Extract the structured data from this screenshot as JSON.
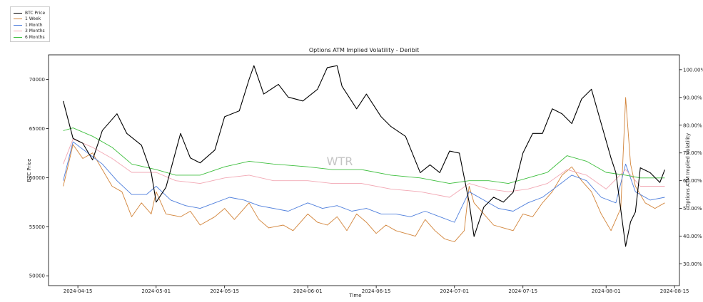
{
  "chart_data": {
    "type": "line",
    "title": "Options ATM Implied Volatility - Deribit",
    "xlabel": "Time",
    "ylabel_left": "BTC Price",
    "ylabel_right": "Options ATM Implied Volatility",
    "watermark": "WTR",
    "x_domain": [
      "2024-04-09",
      "2024-08-16"
    ],
    "x_ticks": [
      "2024-04-15",
      "2024-05-01",
      "2024-05-15",
      "2024-06-01",
      "2024-06-15",
      "2024-07-01",
      "2024-07-15",
      "2024-08-01",
      "2024-08-15"
    ],
    "y_left_domain": [
      49000,
      72500
    ],
    "y_left_ticks": [
      "50000",
      "55000",
      "60000",
      "65000",
      "70000"
    ],
    "y_right_domain": [
      0.2218,
      1.0535
    ],
    "y_right_ticks": [
      "30.00%",
      "40.00%",
      "50.00%",
      "60.00%",
      "70.00%",
      "80.00%",
      "90.00%",
      "100.00%"
    ],
    "legend_position": "top-left (outside plot)",
    "series": [
      {
        "name": "BTC Price",
        "axis": "left",
        "color": "#000000",
        "points": [
          [
            "2024-04-12",
            67800
          ],
          [
            "2024-04-14",
            64000
          ],
          [
            "2024-04-16",
            63500
          ],
          [
            "2024-04-18",
            61800
          ],
          [
            "2024-04-20",
            64800
          ],
          [
            "2024-04-23",
            66500
          ],
          [
            "2024-04-25",
            64500
          ],
          [
            "2024-04-28",
            63300
          ],
          [
            "2024-04-30",
            60500
          ],
          [
            "2024-05-01",
            57500
          ],
          [
            "2024-05-03",
            59000
          ],
          [
            "2024-05-06",
            64500
          ],
          [
            "2024-05-08",
            62000
          ],
          [
            "2024-05-10",
            61500
          ],
          [
            "2024-05-13",
            62800
          ],
          [
            "2024-05-15",
            66200
          ],
          [
            "2024-05-18",
            66800
          ],
          [
            "2024-05-20",
            70000
          ],
          [
            "2024-05-21",
            71400
          ],
          [
            "2024-05-23",
            68500
          ],
          [
            "2024-05-26",
            69500
          ],
          [
            "2024-05-28",
            68200
          ],
          [
            "2024-05-31",
            67800
          ],
          [
            "2024-06-03",
            69000
          ],
          [
            "2024-06-05",
            71200
          ],
          [
            "2024-06-07",
            71400
          ],
          [
            "2024-06-08",
            69300
          ],
          [
            "2024-06-11",
            67000
          ],
          [
            "2024-06-13",
            68500
          ],
          [
            "2024-06-16",
            66200
          ],
          [
            "2024-06-18",
            65200
          ],
          [
            "2024-06-21",
            64200
          ],
          [
            "2024-06-24",
            60500
          ],
          [
            "2024-06-26",
            61300
          ],
          [
            "2024-06-28",
            60500
          ],
          [
            "2024-06-30",
            62700
          ],
          [
            "2024-07-02",
            62500
          ],
          [
            "2024-07-04",
            57500
          ],
          [
            "2024-07-05",
            54000
          ],
          [
            "2024-07-07",
            57000
          ],
          [
            "2024-07-09",
            58000
          ],
          [
            "2024-07-11",
            57500
          ],
          [
            "2024-07-13",
            58500
          ],
          [
            "2024-07-15",
            62500
          ],
          [
            "2024-07-17",
            64500
          ],
          [
            "2024-07-19",
            64500
          ],
          [
            "2024-07-21",
            67000
          ],
          [
            "2024-07-23",
            66500
          ],
          [
            "2024-07-25",
            65500
          ],
          [
            "2024-07-27",
            68000
          ],
          [
            "2024-07-29",
            69000
          ],
          [
            "2024-07-31",
            65500
          ],
          [
            "2024-08-02",
            62000
          ],
          [
            "2024-08-03",
            60500
          ],
          [
            "2024-08-05",
            53000
          ],
          [
            "2024-08-06",
            55500
          ],
          [
            "2024-08-07",
            56500
          ],
          [
            "2024-08-08",
            61000
          ],
          [
            "2024-08-10",
            60500
          ],
          [
            "2024-08-12",
            59500
          ],
          [
            "2024-08-13",
            60800
          ]
        ]
      },
      {
        "name": "1 Week",
        "axis": "right",
        "color": "#d2843a",
        "points": [
          [
            "2024-04-12",
            0.58
          ],
          [
            "2024-04-14",
            0.73
          ],
          [
            "2024-04-16",
            0.68
          ],
          [
            "2024-04-18",
            0.7
          ],
          [
            "2024-04-20",
            0.64
          ],
          [
            "2024-04-22",
            0.58
          ],
          [
            "2024-04-24",
            0.56
          ],
          [
            "2024-04-26",
            0.47
          ],
          [
            "2024-04-28",
            0.52
          ],
          [
            "2024-04-30",
            0.48
          ],
          [
            "2024-05-01",
            0.56
          ],
          [
            "2024-05-03",
            0.48
          ],
          [
            "2024-05-06",
            0.47
          ],
          [
            "2024-05-08",
            0.49
          ],
          [
            "2024-05-10",
            0.44
          ],
          [
            "2024-05-13",
            0.47
          ],
          [
            "2024-05-15",
            0.5
          ],
          [
            "2024-05-17",
            0.46
          ],
          [
            "2024-05-20",
            0.52
          ],
          [
            "2024-05-22",
            0.46
          ],
          [
            "2024-05-24",
            0.43
          ],
          [
            "2024-05-27",
            0.44
          ],
          [
            "2024-05-29",
            0.42
          ],
          [
            "2024-06-01",
            0.48
          ],
          [
            "2024-06-03",
            0.45
          ],
          [
            "2024-06-05",
            0.44
          ],
          [
            "2024-06-07",
            0.47
          ],
          [
            "2024-06-09",
            0.42
          ],
          [
            "2024-06-11",
            0.48
          ],
          [
            "2024-06-13",
            0.45
          ],
          [
            "2024-06-15",
            0.41
          ],
          [
            "2024-06-17",
            0.44
          ],
          [
            "2024-06-19",
            0.42
          ],
          [
            "2024-06-21",
            0.41
          ],
          [
            "2024-06-23",
            0.4
          ],
          [
            "2024-06-25",
            0.46
          ],
          [
            "2024-06-27",
            0.42
          ],
          [
            "2024-06-29",
            0.39
          ],
          [
            "2024-07-01",
            0.38
          ],
          [
            "2024-07-03",
            0.42
          ],
          [
            "2024-07-04",
            0.58
          ],
          [
            "2024-07-05",
            0.52
          ],
          [
            "2024-07-07",
            0.48
          ],
          [
            "2024-07-09",
            0.44
          ],
          [
            "2024-07-11",
            0.43
          ],
          [
            "2024-07-13",
            0.42
          ],
          [
            "2024-07-15",
            0.48
          ],
          [
            "2024-07-17",
            0.47
          ],
          [
            "2024-07-19",
            0.52
          ],
          [
            "2024-07-21",
            0.56
          ],
          [
            "2024-07-23",
            0.62
          ],
          [
            "2024-07-25",
            0.65
          ],
          [
            "2024-07-27",
            0.6
          ],
          [
            "2024-07-29",
            0.56
          ],
          [
            "2024-07-31",
            0.48
          ],
          [
            "2024-08-02",
            0.42
          ],
          [
            "2024-08-04",
            0.5
          ],
          [
            "2024-08-05",
            0.9
          ],
          [
            "2024-08-06",
            0.66
          ],
          [
            "2024-08-07",
            0.58
          ],
          [
            "2024-08-09",
            0.52
          ],
          [
            "2024-08-11",
            0.5
          ],
          [
            "2024-08-13",
            0.52
          ]
        ]
      },
      {
        "name": "1 Month",
        "axis": "right",
        "color": "#4f7fdc",
        "points": [
          [
            "2024-04-12",
            0.6
          ],
          [
            "2024-04-14",
            0.74
          ],
          [
            "2024-04-17",
            0.7
          ],
          [
            "2024-04-20",
            0.66
          ],
          [
            "2024-04-23",
            0.6
          ],
          [
            "2024-04-26",
            0.55
          ],
          [
            "2024-04-29",
            0.55
          ],
          [
            "2024-05-01",
            0.58
          ],
          [
            "2024-05-04",
            0.53
          ],
          [
            "2024-05-07",
            0.51
          ],
          [
            "2024-05-10",
            0.5
          ],
          [
            "2024-05-13",
            0.52
          ],
          [
            "2024-05-16",
            0.54
          ],
          [
            "2024-05-19",
            0.53
          ],
          [
            "2024-05-22",
            0.51
          ],
          [
            "2024-05-25",
            0.5
          ],
          [
            "2024-05-28",
            0.49
          ],
          [
            "2024-06-01",
            0.52
          ],
          [
            "2024-06-04",
            0.5
          ],
          [
            "2024-06-07",
            0.51
          ],
          [
            "2024-06-10",
            0.49
          ],
          [
            "2024-06-13",
            0.5
          ],
          [
            "2024-06-16",
            0.48
          ],
          [
            "2024-06-19",
            0.48
          ],
          [
            "2024-06-22",
            0.47
          ],
          [
            "2024-06-25",
            0.49
          ],
          [
            "2024-06-28",
            0.47
          ],
          [
            "2024-07-01",
            0.45
          ],
          [
            "2024-07-04",
            0.56
          ],
          [
            "2024-07-07",
            0.53
          ],
          [
            "2024-07-10",
            0.5
          ],
          [
            "2024-07-13",
            0.49
          ],
          [
            "2024-07-16",
            0.52
          ],
          [
            "2024-07-19",
            0.54
          ],
          [
            "2024-07-22",
            0.58
          ],
          [
            "2024-07-25",
            0.62
          ],
          [
            "2024-07-28",
            0.6
          ],
          [
            "2024-07-31",
            0.54
          ],
          [
            "2024-08-03",
            0.52
          ],
          [
            "2024-08-05",
            0.66
          ],
          [
            "2024-08-07",
            0.56
          ],
          [
            "2024-08-10",
            0.53
          ],
          [
            "2024-08-13",
            0.54
          ]
        ]
      },
      {
        "name": "3 Months",
        "axis": "right",
        "color": "#f2a8b4",
        "points": [
          [
            "2024-04-12",
            0.66
          ],
          [
            "2024-04-14",
            0.75
          ],
          [
            "2024-04-18",
            0.72
          ],
          [
            "2024-04-22",
            0.68
          ],
          [
            "2024-04-26",
            0.63
          ],
          [
            "2024-05-01",
            0.63
          ],
          [
            "2024-05-05",
            0.6
          ],
          [
            "2024-05-10",
            0.59
          ],
          [
            "2024-05-15",
            0.61
          ],
          [
            "2024-05-20",
            0.62
          ],
          [
            "2024-05-25",
            0.6
          ],
          [
            "2024-06-01",
            0.6
          ],
          [
            "2024-06-06",
            0.59
          ],
          [
            "2024-06-12",
            0.59
          ],
          [
            "2024-06-18",
            0.57
          ],
          [
            "2024-06-24",
            0.56
          ],
          [
            "2024-06-30",
            0.54
          ],
          [
            "2024-07-04",
            0.59
          ],
          [
            "2024-07-08",
            0.57
          ],
          [
            "2024-07-12",
            0.56
          ],
          [
            "2024-07-16",
            0.57
          ],
          [
            "2024-07-20",
            0.59
          ],
          [
            "2024-07-24",
            0.64
          ],
          [
            "2024-07-28",
            0.62
          ],
          [
            "2024-08-01",
            0.57
          ],
          [
            "2024-08-05",
            0.64
          ],
          [
            "2024-08-08",
            0.58
          ],
          [
            "2024-08-13",
            0.58
          ]
        ]
      },
      {
        "name": "6 Months",
        "axis": "right",
        "color": "#3fbf3f",
        "points": [
          [
            "2024-04-12",
            0.78
          ],
          [
            "2024-04-14",
            0.79
          ],
          [
            "2024-04-18",
            0.76
          ],
          [
            "2024-04-22",
            0.72
          ],
          [
            "2024-04-26",
            0.66
          ],
          [
            "2024-05-01",
            0.64
          ],
          [
            "2024-05-05",
            0.62
          ],
          [
            "2024-05-10",
            0.62
          ],
          [
            "2024-05-15",
            0.65
          ],
          [
            "2024-05-20",
            0.67
          ],
          [
            "2024-05-25",
            0.66
          ],
          [
            "2024-06-01",
            0.65
          ],
          [
            "2024-06-06",
            0.64
          ],
          [
            "2024-06-12",
            0.64
          ],
          [
            "2024-06-18",
            0.62
          ],
          [
            "2024-06-24",
            0.61
          ],
          [
            "2024-06-30",
            0.59
          ],
          [
            "2024-07-04",
            0.6
          ],
          [
            "2024-07-08",
            0.6
          ],
          [
            "2024-07-12",
            0.59
          ],
          [
            "2024-07-16",
            0.61
          ],
          [
            "2024-07-20",
            0.63
          ],
          [
            "2024-07-24",
            0.69
          ],
          [
            "2024-07-28",
            0.67
          ],
          [
            "2024-08-01",
            0.63
          ],
          [
            "2024-08-05",
            0.62
          ],
          [
            "2024-08-08",
            0.61
          ],
          [
            "2024-08-13",
            0.61
          ]
        ]
      }
    ]
  }
}
